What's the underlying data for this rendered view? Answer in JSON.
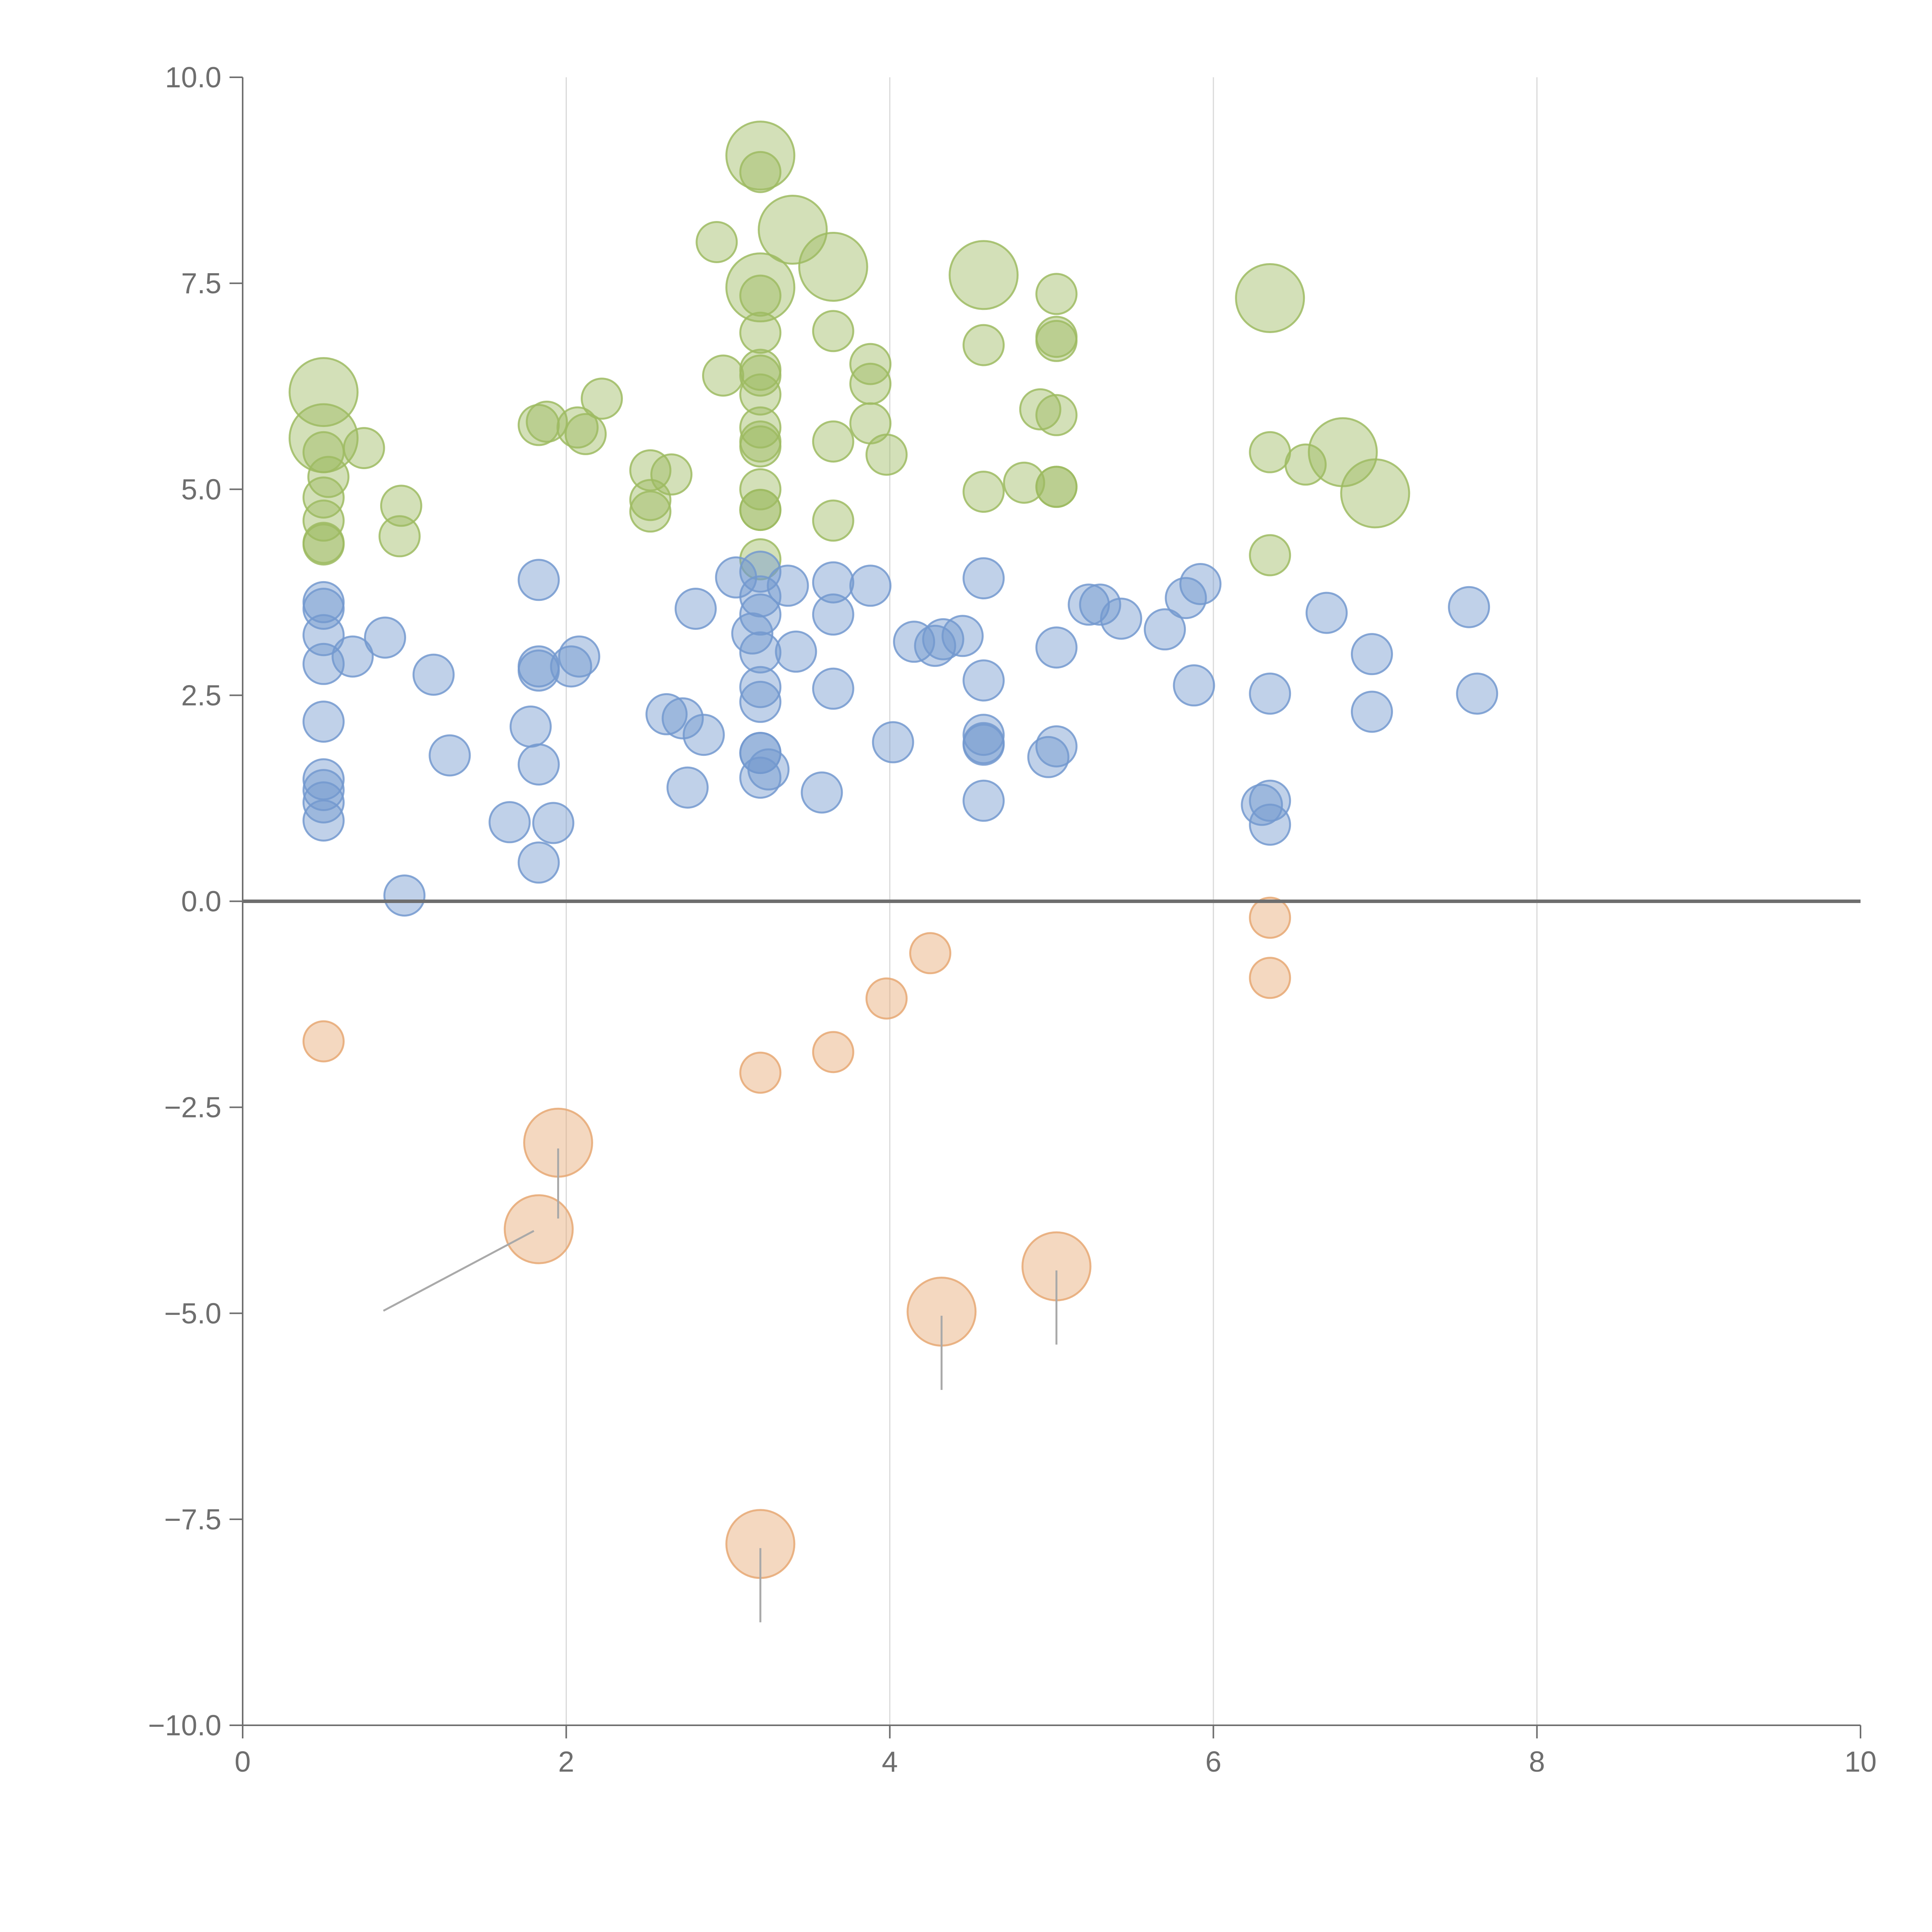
{
  "chart_data": {
    "type": "scatter",
    "title": "",
    "xlabel": "",
    "ylabel": "",
    "xlim": [
      0,
      10
    ],
    "ylim": [
      -10,
      10
    ],
    "x_ticks": [
      "0",
      "2",
      "4",
      "6",
      "8",
      "10"
    ],
    "y_ticks": [
      "10.0",
      "7.5",
      "5.0",
      "2.5",
      "0.0",
      "−2.5",
      "−5.0",
      "−7.5",
      "−10.0"
    ],
    "grid": "vertical lines at x = 2, 4, 6, 8",
    "zero_line": true,
    "bubble_size_meaning": "larger bubbles for some points",
    "series": [
      {
        "color": "#9dbb61",
        "points": [
          [
            3.2,
            9.05,
            3
          ],
          [
            3.2,
            8.85,
            1
          ],
          [
            3.4,
            8.15,
            3
          ],
          [
            2.93,
            8.0,
            1
          ],
          [
            3.65,
            7.7,
            3
          ],
          [
            3.2,
            7.45,
            3
          ],
          [
            3.2,
            7.35,
            1
          ],
          [
            4.58,
            7.6,
            3
          ],
          [
            5.03,
            7.37,
            1
          ],
          [
            6.35,
            7.32,
            3
          ],
          [
            3.2,
            6.9,
            1
          ],
          [
            3.65,
            6.92,
            1
          ],
          [
            4.58,
            6.75,
            1
          ],
          [
            5.03,
            6.85,
            1
          ],
          [
            5.03,
            6.8,
            1
          ],
          [
            0.5,
            6.18,
            3
          ],
          [
            3.2,
            6.45,
            1
          ],
          [
            3.2,
            6.38,
            1
          ],
          [
            3.2,
            6.15,
            1
          ],
          [
            2.97,
            6.38,
            1
          ],
          [
            3.88,
            6.52,
            1
          ],
          [
            3.88,
            6.28,
            1
          ],
          [
            2.22,
            6.1,
            1
          ],
          [
            0.5,
            5.62,
            3
          ],
          [
            0.75,
            5.5,
            1
          ],
          [
            0.5,
            5.45,
            1
          ],
          [
            0.53,
            5.15,
            1
          ],
          [
            1.83,
            5.78,
            1
          ],
          [
            1.88,
            5.82,
            1
          ],
          [
            2.07,
            5.75,
            1
          ],
          [
            2.12,
            5.67,
            1
          ],
          [
            3.2,
            5.75,
            1
          ],
          [
            3.2,
            5.52,
            1
          ],
          [
            3.2,
            5.58,
            1
          ],
          [
            3.65,
            5.58,
            1
          ],
          [
            3.88,
            5.8,
            1
          ],
          [
            3.98,
            5.42,
            1
          ],
          [
            4.93,
            5.97,
            1
          ],
          [
            5.03,
            5.9,
            1
          ],
          [
            6.35,
            5.45,
            1
          ],
          [
            6.57,
            5.3,
            1
          ],
          [
            6.8,
            5.45,
            3
          ],
          [
            7.0,
            4.95,
            3
          ],
          [
            0.5,
            4.9,
            1
          ],
          [
            0.5,
            4.62,
            1
          ],
          [
            0.98,
            4.8,
            1
          ],
          [
            0.97,
            4.43,
            1
          ],
          [
            2.52,
            5.23,
            1
          ],
          [
            2.65,
            5.18,
            1
          ],
          [
            2.52,
            4.87,
            1
          ],
          [
            2.52,
            4.73,
            1
          ],
          [
            3.2,
            5.0,
            1
          ],
          [
            3.2,
            4.75,
            1
          ],
          [
            3.2,
            4.75,
            1
          ],
          [
            3.65,
            4.62,
            1
          ],
          [
            4.58,
            4.97,
            1
          ],
          [
            4.83,
            5.08,
            1
          ],
          [
            5.03,
            5.03,
            1
          ],
          [
            5.03,
            5.03,
            1
          ],
          [
            0.5,
            4.33,
            1
          ],
          [
            0.5,
            4.35,
            1
          ],
          [
            3.2,
            4.15,
            1
          ],
          [
            6.35,
            4.2,
            1
          ]
        ]
      },
      {
        "color": "#7399cf",
        "points": [
          [
            3.2,
            4.0,
            1
          ],
          [
            3.05,
            3.93,
            1
          ],
          [
            3.37,
            3.83,
            1
          ],
          [
            3.2,
            3.7,
            1
          ],
          [
            3.2,
            3.48,
            1
          ],
          [
            3.65,
            3.87,
            1
          ],
          [
            3.65,
            3.48,
            1
          ],
          [
            3.88,
            3.83,
            1
          ],
          [
            1.83,
            3.9,
            1
          ],
          [
            4.58,
            3.92,
            1
          ],
          [
            5.92,
            3.85,
            1
          ],
          [
            5.83,
            3.68,
            1
          ],
          [
            5.23,
            3.6,
            1
          ],
          [
            5.3,
            3.6,
            1
          ],
          [
            5.43,
            3.43,
            1
          ],
          [
            0.5,
            3.63,
            1
          ],
          [
            0.5,
            3.55,
            1
          ],
          [
            2.8,
            3.55,
            1
          ],
          [
            6.7,
            3.5,
            1
          ],
          [
            7.58,
            3.57,
            1
          ],
          [
            0.5,
            3.23,
            1
          ],
          [
            0.88,
            3.2,
            1
          ],
          [
            3.15,
            3.25,
            1
          ],
          [
            3.2,
            3.02,
            1
          ],
          [
            3.42,
            3.03,
            1
          ],
          [
            4.15,
            3.15,
            1
          ],
          [
            4.28,
            3.1,
            1
          ],
          [
            4.33,
            3.18,
            1
          ],
          [
            4.45,
            3.22,
            1
          ],
          [
            5.03,
            3.08,
            1
          ],
          [
            5.7,
            3.3,
            1
          ],
          [
            6.98,
            3.0,
            1
          ],
          [
            0.5,
            2.88,
            1
          ],
          [
            0.68,
            2.97,
            1
          ],
          [
            1.18,
            2.75,
            1
          ],
          [
            1.83,
            2.85,
            1
          ],
          [
            1.83,
            2.8,
            1
          ],
          [
            2.03,
            2.85,
            1
          ],
          [
            2.08,
            2.97,
            1
          ],
          [
            3.2,
            2.6,
            1
          ],
          [
            3.2,
            2.42,
            1
          ],
          [
            3.65,
            2.58,
            1
          ],
          [
            4.58,
            2.68,
            1
          ],
          [
            5.88,
            2.62,
            1
          ],
          [
            6.35,
            2.52,
            1
          ],
          [
            7.63,
            2.52,
            1
          ],
          [
            0.5,
            2.18,
            1
          ],
          [
            1.78,
            2.12,
            1
          ],
          [
            2.62,
            2.27,
            1
          ],
          [
            2.72,
            2.22,
            1
          ],
          [
            2.85,
            2.02,
            1
          ],
          [
            6.98,
            2.3,
            1
          ],
          [
            1.28,
            1.77,
            1
          ],
          [
            1.83,
            1.66,
            1
          ],
          [
            3.2,
            1.8,
            1
          ],
          [
            3.2,
            1.8,
            1
          ],
          [
            3.25,
            1.6,
            1
          ],
          [
            3.2,
            1.5,
            1
          ],
          [
            4.02,
            1.93,
            1
          ],
          [
            4.58,
            2.02,
            1
          ],
          [
            4.58,
            1.92,
            1
          ],
          [
            4.58,
            1.9,
            1
          ],
          [
            4.98,
            1.75,
            1
          ],
          [
            5.03,
            1.88,
            1
          ],
          [
            0.5,
            1.48,
            1
          ],
          [
            0.5,
            1.35,
            1
          ],
          [
            0.5,
            1.2,
            1
          ],
          [
            2.75,
            1.38,
            1
          ],
          [
            3.58,
            1.32,
            1
          ],
          [
            4.58,
            1.22,
            1
          ],
          [
            6.3,
            1.17,
            1
          ],
          [
            6.35,
            1.22,
            1
          ],
          [
            0.5,
            0.98,
            1
          ],
          [
            1.65,
            0.96,
            1
          ],
          [
            1.92,
            0.95,
            1
          ],
          [
            6.35,
            0.93,
            1
          ],
          [
            1.83,
            0.47,
            1
          ],
          [
            1.0,
            0.07,
            1
          ]
        ]
      },
      {
        "color": "#e6a873",
        "points": [
          [
            6.35,
            -0.2,
            1
          ],
          [
            4.25,
            -0.63,
            1
          ],
          [
            3.98,
            -1.18,
            1
          ],
          [
            6.35,
            -0.93,
            1
          ],
          [
            0.5,
            -1.7,
            1
          ],
          [
            3.65,
            -1.83,
            1
          ],
          [
            3.2,
            -2.08,
            1
          ],
          [
            1.95,
            -2.93,
            3
          ],
          [
            1.83,
            -3.98,
            3
          ],
          [
            5.03,
            -4.43,
            3
          ],
          [
            4.32,
            -4.98,
            3
          ],
          [
            3.2,
            -7.8,
            3
          ]
        ]
      }
    ]
  }
}
